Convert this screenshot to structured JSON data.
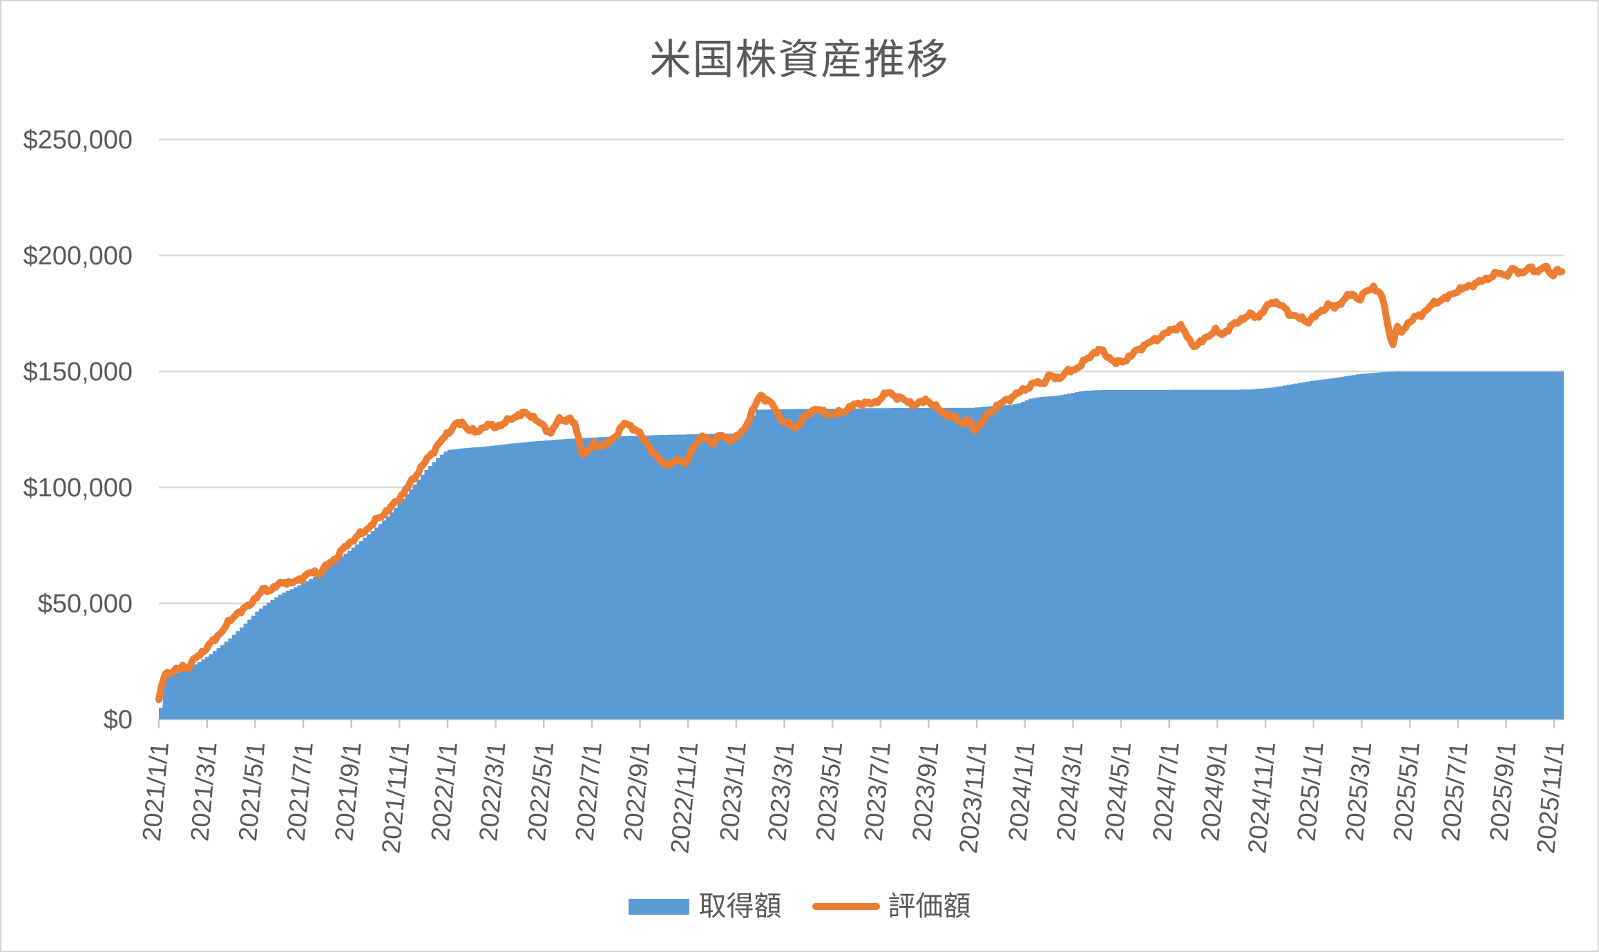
{
  "chart_data": {
    "type": "area+line",
    "title": "米国株資産推移",
    "x_unit": "months_since_2021-01-01",
    "grid": true,
    "legend_position": "bottom",
    "colors": {
      "area": "#5B9BD5",
      "line": "#ED7D31",
      "text": "#595959",
      "gridline": "#D9D9D9",
      "axis": "#C8C8C8",
      "background": "#FFFFFF",
      "border": "#D3D3D3"
    },
    "y_axis": {
      "min": 0,
      "max": 250000,
      "step": 50000,
      "tick_values": [
        0,
        50000,
        100000,
        150000,
        200000,
        250000
      ],
      "tick_labels": [
        "$0",
        "$50,000",
        "$100,000",
        "$150,000",
        "$200,000",
        "$250,000"
      ]
    },
    "x_axis": {
      "tick_interval_months": 2,
      "months_total": 58.4,
      "tick_labels": [
        "2021/1/1",
        "2021/3/1",
        "2021/5/1",
        "2021/7/1",
        "2021/9/1",
        "2021/11/1",
        "2022/1/1",
        "2022/3/1",
        "2022/5/1",
        "2022/7/1",
        "2022/9/1",
        "2022/11/1",
        "2023/1/1",
        "2023/3/1",
        "2023/5/1",
        "2023/7/1",
        "2023/9/1",
        "2023/11/1",
        "2024/1/1",
        "2024/3/1",
        "2024/5/1",
        "2024/7/1",
        "2024/9/1",
        "2024/11/1",
        "2025/1/1",
        "2025/3/1",
        "2025/5/1",
        "2025/7/1",
        "2025/9/1",
        "2025/11/1"
      ]
    },
    "series": [
      {
        "name": "取得額",
        "type": "area",
        "color": "#5B9BD5",
        "points": [
          [
            0,
            5000
          ],
          [
            0.15,
            18500
          ],
          [
            0.5,
            19500
          ],
          [
            1,
            21500
          ],
          [
            1.5,
            24000
          ],
          [
            2,
            27500
          ],
          [
            2.5,
            31500
          ],
          [
            3,
            36000
          ],
          [
            3.5,
            41000
          ],
          [
            4,
            46500
          ],
          [
            4.5,
            50500
          ],
          [
            5,
            54000
          ],
          [
            5.5,
            56500
          ],
          [
            6,
            59000
          ],
          [
            6.5,
            62000
          ],
          [
            7,
            66000
          ],
          [
            7.5,
            70000
          ],
          [
            8,
            74000
          ],
          [
            8.5,
            78500
          ],
          [
            9,
            83000
          ],
          [
            9.5,
            88000
          ],
          [
            10,
            94000
          ],
          [
            10.5,
            100500
          ],
          [
            11,
            107000
          ],
          [
            11.5,
            112500
          ],
          [
            11.9,
            116000
          ],
          [
            12.5,
            116800
          ],
          [
            13.5,
            117600
          ],
          [
            14.5,
            118800
          ],
          [
            15.5,
            119800
          ],
          [
            16.5,
            120600
          ],
          [
            17.5,
            121300
          ],
          [
            18.5,
            121800
          ],
          [
            19.5,
            122200
          ],
          [
            20.5,
            122500
          ],
          [
            21.5,
            122800
          ],
          [
            22.5,
            123000
          ],
          [
            23.5,
            123200
          ],
          [
            24.2,
            123300
          ],
          [
            24.45,
            128000
          ],
          [
            24.8,
            133500
          ],
          [
            26,
            133800
          ],
          [
            28,
            134000
          ],
          [
            30,
            134200
          ],
          [
            32,
            134300
          ],
          [
            33.8,
            134400
          ],
          [
            34.5,
            135000
          ],
          [
            35.3,
            135500
          ],
          [
            35.7,
            136300
          ],
          [
            36.2,
            138400
          ],
          [
            36.6,
            139000
          ],
          [
            37.3,
            139500
          ],
          [
            37.8,
            140500
          ],
          [
            38.3,
            141500
          ],
          [
            39,
            142000
          ],
          [
            45.3,
            142200
          ],
          [
            46,
            142800
          ],
          [
            46.5,
            143500
          ],
          [
            47.1,
            144600
          ],
          [
            47.6,
            145500
          ],
          [
            48.1,
            146200
          ],
          [
            48.7,
            147000
          ],
          [
            49.2,
            147800
          ],
          [
            49.8,
            148800
          ],
          [
            50.3,
            149300
          ],
          [
            51,
            149800
          ],
          [
            51.5,
            150000
          ],
          [
            58.4,
            150000
          ]
        ]
      },
      {
        "name": "評価額",
        "type": "line",
        "color": "#ED7D31",
        "stroke_width": 10,
        "points": [
          [
            0,
            8500
          ],
          [
            0.1,
            14000
          ],
          [
            0.25,
            19500
          ],
          [
            0.5,
            20500
          ],
          [
            0.8,
            21500
          ],
          [
            1.0,
            23000
          ],
          [
            1.2,
            22000
          ],
          [
            1.5,
            26000
          ],
          [
            1.8,
            29000
          ],
          [
            2.1,
            32000
          ],
          [
            2.4,
            35500
          ],
          [
            2.7,
            39000
          ],
          [
            3.0,
            43000
          ],
          [
            3.2,
            45500
          ],
          [
            3.5,
            47000
          ],
          [
            3.8,
            50000
          ],
          [
            4.1,
            53000
          ],
          [
            4.4,
            56500
          ],
          [
            4.6,
            55500
          ],
          [
            4.9,
            57500
          ],
          [
            5.2,
            59500
          ],
          [
            5.5,
            58500
          ],
          [
            5.8,
            60000
          ],
          [
            6.1,
            62000
          ],
          [
            6.4,
            63500
          ],
          [
            6.7,
            63000
          ],
          [
            7.0,
            66500
          ],
          [
            7.4,
            70000
          ],
          [
            7.8,
            75000
          ],
          [
            8.2,
            78500
          ],
          [
            8.6,
            81500
          ],
          [
            9.0,
            85500
          ],
          [
            9.4,
            89000
          ],
          [
            9.8,
            93000
          ],
          [
            10.2,
            98000
          ],
          [
            10.6,
            104000
          ],
          [
            11.0,
            110000
          ],
          [
            11.4,
            115500
          ],
          [
            11.9,
            122000
          ],
          [
            12.3,
            127000
          ],
          [
            12.6,
            127700
          ],
          [
            12.9,
            125000
          ],
          [
            13.2,
            123500
          ],
          [
            13.6,
            127000
          ],
          [
            14.0,
            126000
          ],
          [
            14.4,
            128000
          ],
          [
            14.8,
            130500
          ],
          [
            15.1,
            132000
          ],
          [
            15.5,
            131000
          ],
          [
            15.9,
            127000
          ],
          [
            16.3,
            123500
          ],
          [
            16.6,
            129000
          ],
          [
            17.1,
            129500
          ],
          [
            17.3,
            127000
          ],
          [
            17.6,
            114500
          ],
          [
            17.9,
            116000
          ],
          [
            18.1,
            119000
          ],
          [
            18.5,
            117500
          ],
          [
            19.0,
            122500
          ],
          [
            19.4,
            128000
          ],
          [
            19.8,
            125000
          ],
          [
            20.2,
            120500
          ],
          [
            20.6,
            114000
          ],
          [
            21.0,
            110500
          ],
          [
            21.3,
            109500
          ],
          [
            21.6,
            112500
          ],
          [
            21.9,
            110000
          ],
          [
            22.3,
            119000
          ],
          [
            22.6,
            122000
          ],
          [
            23.0,
            119000
          ],
          [
            23.3,
            122500
          ],
          [
            23.7,
            120500
          ],
          [
            24.0,
            121500
          ],
          [
            24.3,
            124500
          ],
          [
            24.6,
            131000
          ],
          [
            25.0,
            140000
          ],
          [
            25.3,
            137500
          ],
          [
            25.6,
            134500
          ],
          [
            25.9,
            128700
          ],
          [
            26.2,
            127000
          ],
          [
            26.5,
            126000
          ],
          [
            26.9,
            131000
          ],
          [
            27.3,
            134000
          ],
          [
            27.7,
            132000
          ],
          [
            28.1,
            131500
          ],
          [
            28.5,
            133000
          ],
          [
            28.9,
            135500
          ],
          [
            29.3,
            136500
          ],
          [
            29.7,
            136000
          ],
          [
            30.0,
            138500
          ],
          [
            30.3,
            141000
          ],
          [
            30.7,
            139000
          ],
          [
            31.1,
            137000
          ],
          [
            31.5,
            135500
          ],
          [
            31.9,
            138000
          ],
          [
            32.3,
            134500
          ],
          [
            32.8,
            131000
          ],
          [
            33.2,
            129500
          ],
          [
            33.45,
            127000
          ],
          [
            33.6,
            129500
          ],
          [
            33.9,
            124700
          ],
          [
            34.2,
            128000
          ],
          [
            34.5,
            132000
          ],
          [
            34.9,
            135500
          ],
          [
            35.3,
            138000
          ],
          [
            35.7,
            140500
          ],
          [
            36.1,
            143000
          ],
          [
            36.5,
            145500
          ],
          [
            36.7,
            144500
          ],
          [
            37.0,
            148000
          ],
          [
            37.4,
            147000
          ],
          [
            37.7,
            149500
          ],
          [
            38.1,
            151000
          ],
          [
            38.4,
            153500
          ],
          [
            38.8,
            157500
          ],
          [
            39.1,
            159500
          ],
          [
            39.5,
            156000
          ],
          [
            39.8,
            153500
          ],
          [
            40.2,
            155000
          ],
          [
            40.6,
            158500
          ],
          [
            41.0,
            161500
          ],
          [
            41.4,
            163500
          ],
          [
            41.8,
            166000
          ],
          [
            42.2,
            168500
          ],
          [
            42.5,
            169500
          ],
          [
            42.8,
            164000
          ],
          [
            43.1,
            160500
          ],
          [
            43.5,
            164500
          ],
          [
            43.9,
            167500
          ],
          [
            44.2,
            166000
          ],
          [
            44.6,
            169500
          ],
          [
            45.0,
            172500
          ],
          [
            45.4,
            174500
          ],
          [
            45.7,
            173500
          ],
          [
            46.0,
            177000
          ],
          [
            46.3,
            180500
          ],
          [
            46.7,
            178000
          ],
          [
            47.0,
            175000
          ],
          [
            47.4,
            173000
          ],
          [
            47.8,
            171500
          ],
          [
            48.2,
            175000
          ],
          [
            48.6,
            178500
          ],
          [
            48.9,
            177500
          ],
          [
            49.2,
            180500
          ],
          [
            49.6,
            183500
          ],
          [
            49.9,
            181000
          ],
          [
            50.2,
            184500
          ],
          [
            50.5,
            186500
          ],
          [
            50.8,
            183000
          ],
          [
            51.0,
            176000
          ],
          [
            51.15,
            166000
          ],
          [
            51.3,
            161500
          ],
          [
            51.45,
            169500
          ],
          [
            51.6,
            166500
          ],
          [
            51.9,
            170500
          ],
          [
            52.2,
            173000
          ],
          [
            52.6,
            175500
          ],
          [
            52.9,
            178500
          ],
          [
            53.2,
            180500
          ],
          [
            53.6,
            182000
          ],
          [
            53.9,
            184500
          ],
          [
            54.3,
            186000
          ],
          [
            54.6,
            187500
          ],
          [
            54.9,
            188500
          ],
          [
            55.3,
            190500
          ],
          [
            55.7,
            192500
          ],
          [
            56.0,
            191500
          ],
          [
            56.3,
            194000
          ],
          [
            56.6,
            192500
          ],
          [
            57.0,
            194500
          ],
          [
            57.3,
            193000
          ],
          [
            57.6,
            195300
          ],
          [
            57.9,
            191500
          ],
          [
            58.15,
            194000
          ],
          [
            58.4,
            191800
          ]
        ]
      }
    ]
  },
  "legend": {
    "items": [
      {
        "label": "取得額"
      },
      {
        "label": "評価額"
      }
    ]
  }
}
